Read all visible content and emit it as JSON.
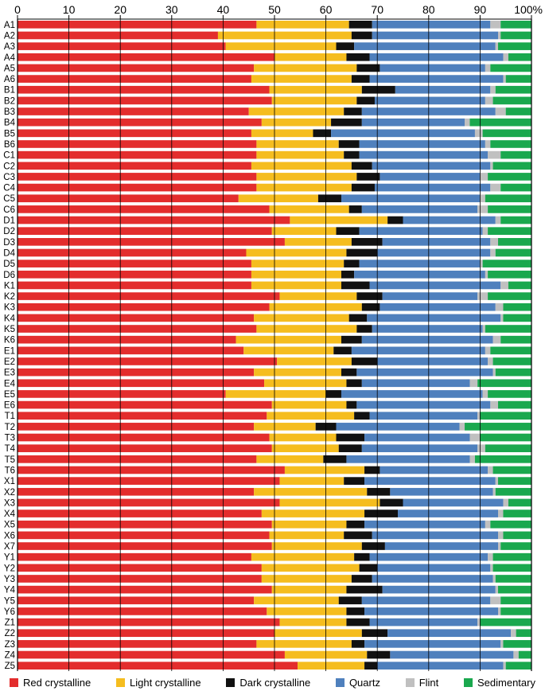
{
  "chart_data": {
    "type": "bar",
    "orientation": "horizontal",
    "stacked": true,
    "percent": true,
    "title": "",
    "xlabel": "",
    "ylabel": "",
    "xlim": [
      0,
      100
    ],
    "x_ticks": [
      "0",
      "10",
      "20",
      "30",
      "40",
      "50",
      "60",
      "70",
      "80",
      "90",
      "100%"
    ],
    "grid": "vertical",
    "legend_position": "bottom",
    "categories": [
      "A1",
      "A2",
      "A3",
      "A4",
      "A5",
      "A6",
      "B1",
      "B2",
      "B3",
      "B4",
      "B5",
      "B6",
      "C1",
      "C2",
      "C3",
      "C4",
      "C5",
      "C6",
      "D1",
      "D2",
      "D3",
      "D4",
      "D5",
      "D6",
      "K1",
      "K2",
      "K3",
      "K4",
      "K5",
      "K6",
      "E1",
      "E2",
      "E3",
      "E4",
      "E5",
      "E6",
      "T1",
      "T2",
      "T3",
      "T4",
      "T5",
      "T6",
      "X1",
      "X2",
      "X3",
      "X4",
      "X5",
      "X6",
      "X7",
      "Y1",
      "Y2",
      "Y3",
      "Y4",
      "Y5",
      "Y6",
      "Z1",
      "Z2",
      "Z3",
      "Z4",
      "Z5"
    ],
    "series": [
      {
        "name": "Red crystalline",
        "color": "#e32d2d",
        "values": [
          46.5,
          39,
          40.5,
          50,
          46,
          45.5,
          49,
          49.5,
          45,
          47.5,
          45.5,
          46.5,
          46.5,
          45.5,
          46.5,
          46.5,
          43,
          49,
          53,
          49.5,
          52,
          44.5,
          45.5,
          45.5,
          45.5,
          51,
          49,
          46,
          46.5,
          42.5,
          44,
          50.5,
          46,
          48,
          40.5,
          49.5,
          48.5,
          46,
          49,
          49.5,
          46.5,
          52,
          51,
          46,
          51,
          47.5,
          49.5,
          49,
          49.5,
          45.5,
          47.5,
          47.5,
          49.5,
          46,
          48.5,
          51,
          50,
          46.5,
          52,
          54.5
        ]
      },
      {
        "name": "Light crystalline",
        "color": "#f5bd1f",
        "values": [
          18,
          26,
          21.5,
          14,
          20,
          19.5,
          18,
          16.5,
          18.5,
          13.5,
          12,
          16,
          17,
          19.5,
          19.5,
          18.5,
          15.5,
          15.5,
          19,
          12.5,
          13,
          19.5,
          18,
          17.5,
          17.5,
          15,
          18,
          18.5,
          19.5,
          20.5,
          17.5,
          14.5,
          17,
          16,
          19.5,
          14.5,
          17,
          12,
          13,
          13,
          13,
          15.5,
          12.5,
          22,
          19.5,
          20,
          14.5,
          14.5,
          17.5,
          20,
          19,
          17.5,
          14.5,
          16.5,
          15.5,
          13,
          17,
          18.5,
          16,
          13
        ]
      },
      {
        "name": "Dark crystalline",
        "color": "#111111",
        "values": [
          4.5,
          4,
          3.5,
          4.5,
          4.5,
          3.5,
          6.5,
          3.5,
          3.5,
          6,
          3.5,
          4,
          3,
          4,
          4.5,
          4.5,
          4.5,
          2.5,
          3,
          4.5,
          6,
          6,
          3,
          2.5,
          5.5,
          5,
          3.5,
          3.5,
          3,
          4,
          3.5,
          5,
          3,
          3,
          3,
          2,
          3,
          4,
          5.5,
          4.5,
          4.5,
          3,
          4,
          4.5,
          4.5,
          6.5,
          3.5,
          5.5,
          4.5,
          3,
          3.5,
          4,
          7,
          4.5,
          3.5,
          4.5,
          5,
          2.5,
          4.5,
          2.5
        ]
      },
      {
        "name": "Quartz",
        "color": "#4f80bd",
        "values": [
          23,
          24.5,
          27.5,
          26,
          20.5,
          26,
          18.5,
          21.5,
          26,
          20,
          28,
          24.5,
          25,
          23,
          19.5,
          22.5,
          27,
          22.5,
          18,
          24,
          21,
          22,
          23.5,
          25.5,
          25.5,
          18.5,
          22.5,
          26,
          21.5,
          25.5,
          26,
          21.5,
          26.5,
          21,
          27.5,
          26,
          21,
          24,
          20.5,
          22.5,
          24,
          21,
          25.5,
          20,
          19.5,
          19.5,
          23.5,
          24.5,
          22,
          23,
          22,
          23.5,
          22,
          25,
          26,
          21,
          24,
          26.5,
          24,
          24.5
        ]
      },
      {
        "name": "Flint",
        "color": "#c0c0c0",
        "values": [
          2,
          0.5,
          0.5,
          1,
          1,
          0.5,
          1,
          1.5,
          2,
          1,
          1.5,
          1,
          2.5,
          0.5,
          1.5,
          2,
          1,
          2,
          1,
          1,
          1.5,
          1,
          0.5,
          0.5,
          1.5,
          2,
          1.5,
          0.5,
          0.5,
          1.5,
          1,
          1,
          0.5,
          1.5,
          1,
          1.5,
          0.5,
          1,
          2,
          1.5,
          1,
          1,
          0.5,
          0.5,
          1,
          1,
          1,
          1,
          0.5,
          1,
          0.5,
          0.5,
          0.5,
          2,
          0.5,
          0.5,
          1,
          0.5,
          1,
          0.5
        ]
      },
      {
        "name": "Sedimentary",
        "color": "#1aa84e",
        "values": [
          6,
          6,
          6.5,
          4.5,
          8,
          5,
          7,
          7.5,
          5,
          12,
          9.5,
          8,
          6,
          7.5,
          8.5,
          6,
          9,
          8.5,
          6,
          8.5,
          6.5,
          7,
          9.5,
          8.5,
          4.5,
          8.5,
          5.5,
          5.5,
          9,
          6,
          8,
          7.5,
          7,
          10.5,
          8.5,
          6.5,
          10,
          13,
          10,
          9,
          11,
          7.5,
          6.5,
          7,
          4.5,
          5.5,
          8,
          5.5,
          6,
          7.5,
          7.5,
          7,
          6.5,
          6,
          6,
          10,
          3,
          5.5,
          2.5,
          5
        ]
      }
    ]
  }
}
